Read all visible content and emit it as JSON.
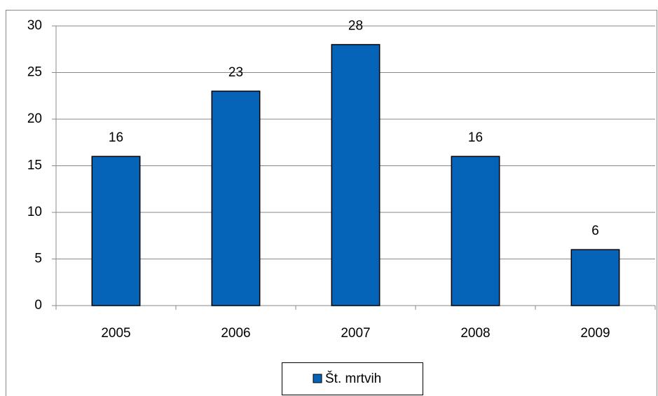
{
  "chart_data": {
    "type": "bar",
    "categories": [
      "2005",
      "2006",
      "2007",
      "2008",
      "2009"
    ],
    "series": [
      {
        "name": "Št. mrtvih",
        "color": "#0563b8",
        "values": [
          16,
          23,
          28,
          16,
          6
        ]
      }
    ],
    "ylim": [
      0,
      30
    ],
    "yticks": [
      0,
      5,
      10,
      15,
      20,
      25,
      30
    ],
    "grid": true,
    "data_labels": true,
    "legend": "bottom"
  }
}
